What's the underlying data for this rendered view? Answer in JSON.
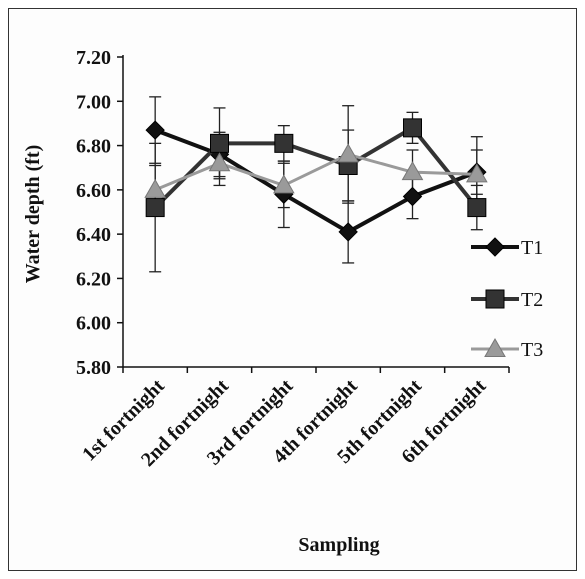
{
  "chart_data": {
    "type": "line",
    "title": "",
    "xlabel": "Sampling",
    "ylabel": "Water depth (ft)",
    "ylim": [
      5.8,
      7.2
    ],
    "yticks": [
      "5.80",
      "6.00",
      "6.20",
      "6.40",
      "6.60",
      "6.80",
      "7.00",
      "7.20"
    ],
    "categories": [
      "1st fortnight",
      "2nd fortnight",
      "3rd fortnight",
      "4th fortnight",
      "5th fortnight",
      "6th fortnight"
    ],
    "legend_position": "right",
    "series": [
      {
        "name": "T1",
        "marker": "diamond",
        "color": "#111111",
        "values": [
          6.87,
          6.76,
          6.58,
          6.41,
          6.57,
          6.68
        ],
        "errors": [
          0.15,
          0.1,
          0.15,
          0.14,
          0.1,
          0.1
        ]
      },
      {
        "name": "T2",
        "marker": "square",
        "color": "#333333",
        "values": [
          6.52,
          6.81,
          6.81,
          6.71,
          6.88,
          6.52
        ],
        "errors": [
          0.29,
          0.16,
          0.08,
          0.16,
          0.07,
          0.1
        ]
      },
      {
        "name": "T3",
        "marker": "triangle",
        "color": "#9a9a9a",
        "values": [
          6.6,
          6.72,
          6.62,
          6.76,
          6.68,
          6.67
        ],
        "errors": [
          0.11,
          0.1,
          0.1,
          0.22,
          0.1,
          0.17
        ]
      }
    ]
  }
}
